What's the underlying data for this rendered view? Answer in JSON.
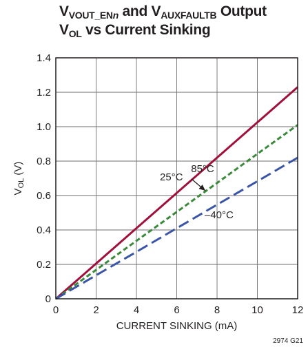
{
  "title": {
    "line1_a": "V",
    "line1_a_sub": "VOUT_EN",
    "line1_a_sub_it": "n",
    "line1_b": " and V",
    "line1_b_sub": "AUXFAULTB",
    "line1_c": " Output",
    "line2_a": "V",
    "line2_a_sub": "OL",
    "line2_b": " vs Current Sinking"
  },
  "figure_code": "2974 G21",
  "chart_data": {
    "type": "line",
    "title": "VVOUT_ENn and VAUXFAULTB Output VOL vs Current Sinking",
    "xlabel": "CURRENT SINKING (mA)",
    "ylabel_main": "V",
    "ylabel_sub": "OL",
    "ylabel_unit": " (V)",
    "xlim": [
      0,
      12
    ],
    "ylim": [
      0,
      1.4
    ],
    "x_ticks": [
      "0",
      "2",
      "4",
      "6",
      "8",
      "10",
      "12"
    ],
    "y_ticks": [
      "0",
      "0.2",
      "0.4",
      "0.6",
      "0.8",
      "1.0",
      "1.2",
      "1.4"
    ],
    "grid": true,
    "series": [
      {
        "name": "85°C",
        "color": "#a0103a",
        "dash": "solid",
        "x": [
          0,
          2,
          4,
          6,
          8,
          10,
          12
        ],
        "y": [
          0,
          0.205,
          0.41,
          0.615,
          0.82,
          1.025,
          1.23
        ]
      },
      {
        "name": "25°C",
        "color": "#3a8a3a",
        "dash": "short",
        "x": [
          0,
          2,
          4,
          6,
          8,
          10,
          12
        ],
        "y": [
          0,
          0.168,
          0.337,
          0.505,
          0.673,
          0.842,
          1.01
        ]
      },
      {
        "name": "–40°C",
        "color": "#3a55a6",
        "dash": "long",
        "x": [
          0,
          2,
          4,
          6,
          8,
          10,
          12
        ],
        "y": [
          0,
          0.137,
          0.273,
          0.41,
          0.547,
          0.683,
          0.82
        ]
      }
    ]
  }
}
